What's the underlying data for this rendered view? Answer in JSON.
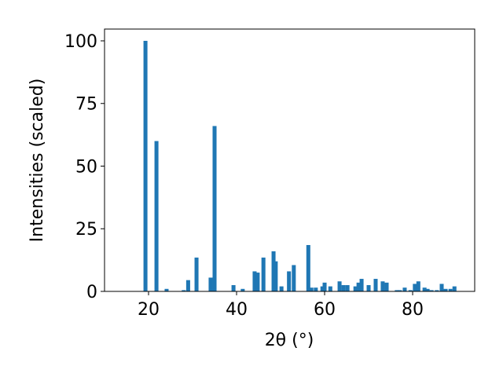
{
  "chart_data": {
    "type": "bar",
    "x_label": "2θ (°)",
    "y_label": "Intensities (scaled)",
    "x": [
      19.3,
      21.8,
      24.1,
      28.0,
      29.0,
      30.9,
      34.1,
      35.0,
      39.3,
      41.4,
      44.1,
      44.8,
      46.1,
      48.4,
      48.9,
      50.2,
      51.9,
      53.0,
      56.3,
      57.0,
      58.0,
      59.5,
      60.0,
      61.3,
      63.4,
      64.3,
      65.2,
      67.0,
      67.7,
      68.4,
      70.0,
      71.6,
      73.2,
      74.1,
      76.4,
      77.1,
      78.2,
      79.5,
      80.5,
      81.3,
      82.7,
      83.4,
      84.3,
      85.5,
      86.6,
      87.5,
      88.6,
      89.5
    ],
    "values": [
      100,
      60,
      1,
      0.5,
      4.5,
      13.5,
      5.5,
      66,
      2.5,
      1,
      8,
      7.5,
      13.5,
      16,
      12,
      2,
      8,
      10.5,
      18.5,
      1.5,
      1.5,
      2,
      3.5,
      2,
      4,
      2.5,
      2.5,
      2,
      3.5,
      5,
      2.5,
      5,
      4,
      3.5,
      0.5,
      0.5,
      1.5,
      0.5,
      3,
      4,
      1.5,
      1,
      0.5,
      0.5,
      3,
      1,
      1,
      2
    ],
    "color": "#1f77b4",
    "xlim": [
      10,
      94.1
    ],
    "xticks": [
      20,
      40,
      60,
      80
    ],
    "ylim": [
      0,
      104.7
    ],
    "yticks": [
      0,
      25,
      50,
      75,
      100
    ]
  }
}
